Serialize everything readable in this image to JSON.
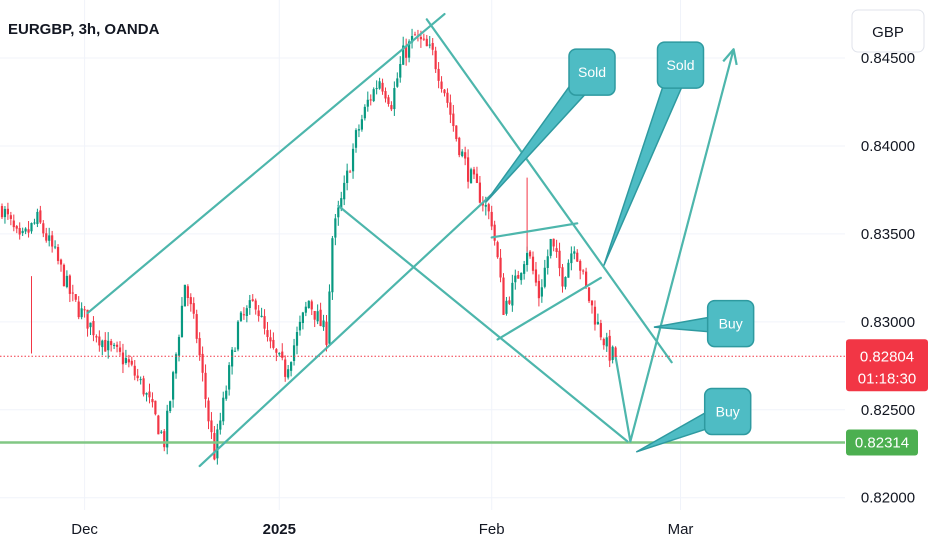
{
  "chart_data": {
    "type": "candlestick",
    "title": "EURGBP, 3h, OANDA",
    "currency": "GBP",
    "y_ticks": [
      0.845,
      0.84,
      0.835,
      0.83,
      0.825,
      0.82
    ],
    "y_tick_labels": [
      "0.84500",
      "0.84000",
      "0.83500",
      "0.83000",
      "0.82500",
      "0.82000"
    ],
    "ylim": [
      0.8193,
      0.8483
    ],
    "x_labels": [
      {
        "label": "Dec",
        "bar": 28,
        "bold": false
      },
      {
        "label": "2025",
        "bar": 94,
        "bold": true
      },
      {
        "label": "Feb",
        "bar": 166,
        "bold": false
      },
      {
        "label": "Mar",
        "bar": 230,
        "bold": false
      }
    ],
    "bar_count": 245,
    "current_price": {
      "label": "0.82804",
      "countdown": "01:18:30",
      "value": 0.82804,
      "color": "#f23645"
    },
    "support_level": {
      "label": "0.82314",
      "value": 0.82314,
      "color": "#4caf50"
    },
    "colors": {
      "up": "#089981",
      "down": "#f23645",
      "drawing": "#4db6ac",
      "callout": "#4ebcc4",
      "callout_border": "#2e9aa0"
    },
    "price_path": [
      {
        "bar": 0,
        "price": 0.8365
      },
      {
        "bar": 6,
        "price": 0.8345
      },
      {
        "bar": 12,
        "price": 0.8358
      },
      {
        "bar": 18,
        "price": 0.8338
      },
      {
        "bar": 24,
        "price": 0.8312
      },
      {
        "bar": 30,
        "price": 0.8298
      },
      {
        "bar": 36,
        "price": 0.8285
      },
      {
        "bar": 42,
        "price": 0.8278
      },
      {
        "bar": 48,
        "price": 0.8262
      },
      {
        "bar": 52,
        "price": 0.8245
      },
      {
        "bar": 55,
        "price": 0.8232
      },
      {
        "bar": 58,
        "price": 0.8268
      },
      {
        "bar": 62,
        "price": 0.8322
      },
      {
        "bar": 66,
        "price": 0.8292
      },
      {
        "bar": 70,
        "price": 0.8245
      },
      {
        "bar": 72,
        "price": 0.8225
      },
      {
        "bar": 76,
        "price": 0.8262
      },
      {
        "bar": 80,
        "price": 0.8298
      },
      {
        "bar": 86,
        "price": 0.8312
      },
      {
        "bar": 90,
        "price": 0.8288
      },
      {
        "bar": 96,
        "price": 0.8272
      },
      {
        "bar": 100,
        "price": 0.8292
      },
      {
        "bar": 104,
        "price": 0.8312
      },
      {
        "bar": 110,
        "price": 0.8292
      },
      {
        "bar": 112,
        "price": 0.8348
      },
      {
        "bar": 116,
        "price": 0.8375
      },
      {
        "bar": 120,
        "price": 0.8405
      },
      {
        "bar": 124,
        "price": 0.8425
      },
      {
        "bar": 128,
        "price": 0.8438
      },
      {
        "bar": 132,
        "price": 0.8425
      },
      {
        "bar": 136,
        "price": 0.8452
      },
      {
        "bar": 140,
        "price": 0.8462
      },
      {
        "bar": 146,
        "price": 0.8452
      },
      {
        "bar": 150,
        "price": 0.8432
      },
      {
        "bar": 154,
        "price": 0.8405
      },
      {
        "bar": 158,
        "price": 0.8385
      },
      {
        "bar": 162,
        "price": 0.8372
      },
      {
        "bar": 166,
        "price": 0.8358
      },
      {
        "bar": 168,
        "price": 0.8335
      },
      {
        "bar": 170,
        "price": 0.8308
      },
      {
        "bar": 174,
        "price": 0.8322
      },
      {
        "bar": 178,
        "price": 0.8342
      },
      {
        "bar": 182,
        "price": 0.8315
      },
      {
        "bar": 186,
        "price": 0.8345
      },
      {
        "bar": 190,
        "price": 0.8325
      },
      {
        "bar": 194,
        "price": 0.8345
      },
      {
        "bar": 198,
        "price": 0.8318
      },
      {
        "bar": 202,
        "price": 0.8298
      },
      {
        "bar": 206,
        "price": 0.8282
      },
      {
        "bar": 208,
        "price": 0.828
      }
    ],
    "annotations": {
      "lines": [
        {
          "bar1": 29,
          "price1": 0.8305,
          "bar2": 150,
          "price2": 0.8475
        },
        {
          "bar1": 67,
          "price1": 0.8218,
          "bar2": 167,
          "price2": 0.8374
        },
        {
          "bar1": 114,
          "price1": 0.8366,
          "bar2": 212,
          "price2": 0.8232
        },
        {
          "bar1": 144,
          "price1": 0.8472,
          "bar2": 227,
          "price2": 0.8277
        },
        {
          "bar1": 166,
          "price1": 0.8348,
          "bar2": 195,
          "price2": 0.8356
        },
        {
          "bar1": 168,
          "price1": 0.829,
          "bar2": 203,
          "price2": 0.8325
        }
      ],
      "arrow_path": [
        {
          "bar": 208,
          "price": 0.828
        },
        {
          "bar": 213,
          "price": 0.8232
        },
        {
          "bar": 248,
          "price": 0.8455
        }
      ],
      "callouts": [
        {
          "label": "Sold",
          "box_bar": 200,
          "box_price": 0.8442,
          "tip_bar": 164,
          "tip_price": 0.8368
        },
        {
          "label": "Sold",
          "box_bar": 230,
          "box_price": 0.8446,
          "tip_bar": 204,
          "tip_price": 0.8332
        },
        {
          "label": "Buy",
          "box_bar": 247,
          "box_price": 0.8299,
          "tip_bar": 221,
          "tip_price": 0.8297
        },
        {
          "label": "Buy",
          "box_bar": 246,
          "box_price": 0.8249,
          "tip_bar": 215,
          "tip_price": 0.8226
        }
      ]
    },
    "grid": true,
    "legend": "none"
  }
}
